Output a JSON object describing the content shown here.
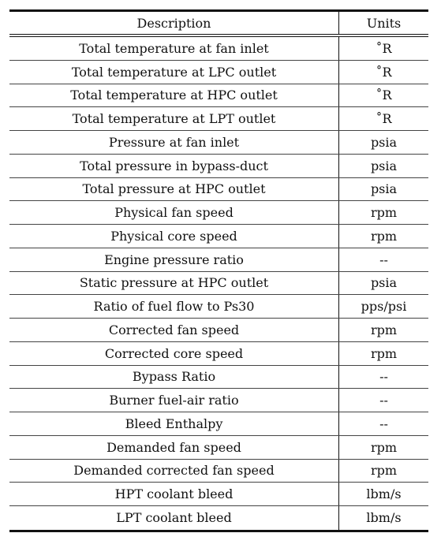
{
  "table": {
    "header": {
      "description": "Description",
      "units": "Units"
    },
    "rows": [
      {
        "description": "Total temperature at fan inlet",
        "units": "˚R"
      },
      {
        "description": "Total temperature at LPC outlet",
        "units": "˚R"
      },
      {
        "description": "Total temperature at HPC outlet",
        "units": "˚R"
      },
      {
        "description": "Total temperature at LPT outlet",
        "units": "˚R"
      },
      {
        "description": "Pressure at fan inlet",
        "units": "psia"
      },
      {
        "description": "Total pressure in bypass-duct",
        "units": "psia"
      },
      {
        "description": "Total pressure at HPC outlet",
        "units": "psia"
      },
      {
        "description": "Physical fan speed",
        "units": "rpm"
      },
      {
        "description": "Physical core speed",
        "units": "rpm"
      },
      {
        "description": "Engine pressure ratio",
        "units": "--"
      },
      {
        "description": "Static pressure at HPC outlet",
        "units": "psia"
      },
      {
        "description": "Ratio of fuel flow to Ps30",
        "units": "pps/psi"
      },
      {
        "description": "Corrected fan speed",
        "units": "rpm"
      },
      {
        "description": "Corrected core speed",
        "units": "rpm"
      },
      {
        "description": "Bypass Ratio",
        "units": "--"
      },
      {
        "description": "Burner fuel-air ratio",
        "units": "--"
      },
      {
        "description": "Bleed Enthalpy",
        "units": "--"
      },
      {
        "description": "Demanded fan speed",
        "units": "rpm"
      },
      {
        "description": "Demanded corrected fan speed",
        "units": "rpm"
      },
      {
        "description": "HPT coolant bleed",
        "units": "lbm/s"
      },
      {
        "description": "LPT coolant bleed",
        "units": "lbm/s"
      }
    ]
  }
}
